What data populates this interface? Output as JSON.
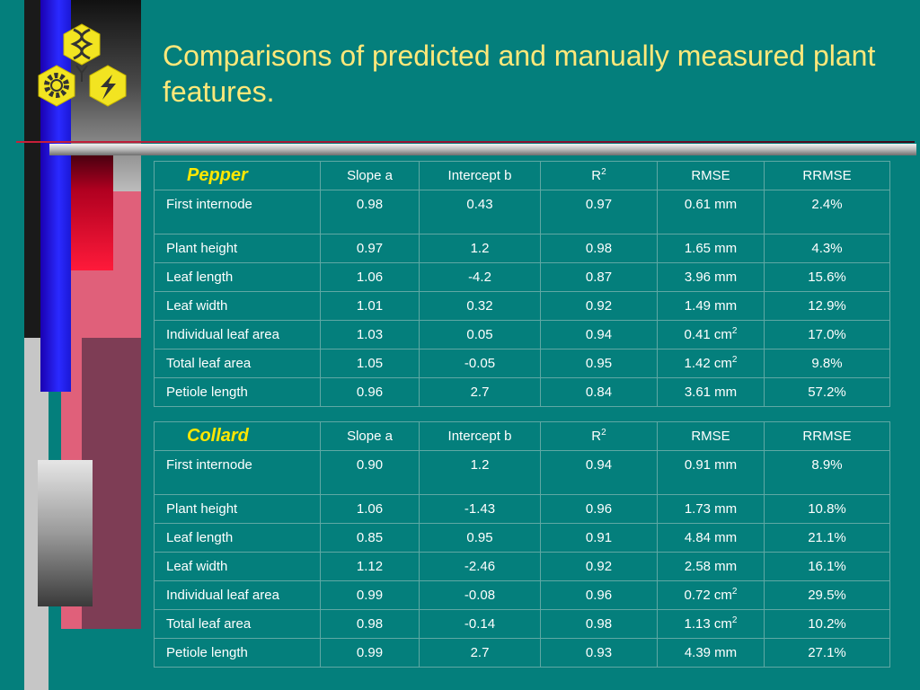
{
  "slide": {
    "title": "Comparisons of predicted and manually measured plant features.",
    "logo_icon": "dna-gear-lightning-hexagon-logo-icon"
  },
  "colors": {
    "background": "#047f7c",
    "title": "#ffe87a",
    "crop_label": "#ffe700",
    "text": "#ffffff"
  },
  "headers": {
    "slope": "Slope  a",
    "intercept": "Intercept  b",
    "r2_base": "R",
    "r2_sup": "2",
    "rmse": "RMSE",
    "rrmse": "RRMSE"
  },
  "tables": [
    {
      "crop": "Pepper",
      "rows": [
        {
          "feature": "First internode",
          "slope": "0.98",
          "intercept": "0.43",
          "r2": "0.97",
          "rmse": "0.61 mm",
          "rmse_sup": "",
          "rrmse": "2.4%"
        },
        {
          "feature": "Plant height",
          "slope": "0.97",
          "intercept": "1.2",
          "r2": "0.98",
          "rmse": "1.65 mm",
          "rmse_sup": "",
          "rrmse": "4.3%"
        },
        {
          "feature": "Leaf length",
          "slope": "1.06",
          "intercept": "-4.2",
          "r2": "0.87",
          "rmse": "3.96 mm",
          "rmse_sup": "",
          "rrmse": "15.6%"
        },
        {
          "feature": "Leaf width",
          "slope": "1.01",
          "intercept": "0.32",
          "r2": "0.92",
          "rmse": "1.49 mm",
          "rmse_sup": "",
          "rrmse": "12.9%"
        },
        {
          "feature": "Individual leaf area",
          "slope": "1.03",
          "intercept": "0.05",
          "r2": "0.94",
          "rmse": "0.41 cm",
          "rmse_sup": "2",
          "rrmse": "17.0%"
        },
        {
          "feature": "Total leaf area",
          "slope": "1.05",
          "intercept": "-0.05",
          "r2": "0.95",
          "rmse": "1.42 cm",
          "rmse_sup": "2",
          "rrmse": "9.8%"
        },
        {
          "feature": "Petiole length",
          "slope": "0.96",
          "intercept": "2.7",
          "r2": "0.84",
          "rmse": "3.61 mm",
          "rmse_sup": "",
          "rrmse": "57.2%"
        }
      ]
    },
    {
      "crop": "Collard",
      "rows": [
        {
          "feature": "First internode",
          "slope": "0.90",
          "intercept": "1.2",
          "r2": "0.94",
          "rmse": "0.91 mm",
          "rmse_sup": "",
          "rrmse": "8.9%"
        },
        {
          "feature": "Plant height",
          "slope": "1.06",
          "intercept": "-1.43",
          "r2": "0.96",
          "rmse": "1.73 mm",
          "rmse_sup": "",
          "rrmse": "10.8%"
        },
        {
          "feature": "Leaf length",
          "slope": "0.85",
          "intercept": "0.95",
          "r2": "0.91",
          "rmse": "4.84 mm",
          "rmse_sup": "",
          "rrmse": "21.1%"
        },
        {
          "feature": "Leaf width",
          "slope": "1.12",
          "intercept": "-2.46",
          "r2": "0.92",
          "rmse": "2.58 mm",
          "rmse_sup": "",
          "rrmse": "16.1%"
        },
        {
          "feature": "Individual leaf area",
          "slope": "0.99",
          "intercept": "-0.08",
          "r2": "0.96",
          "rmse": "0.72 cm",
          "rmse_sup": "2",
          "rrmse": "29.5%"
        },
        {
          "feature": "Total leaf area",
          "slope": "0.98",
          "intercept": "-0.14",
          "r2": "0.98",
          "rmse": "1.13 cm",
          "rmse_sup": "2",
          "rrmse": "10.2%"
        },
        {
          "feature": "Petiole length",
          "slope": "0.99",
          "intercept": "2.7",
          "r2": "0.93",
          "rmse": "4.39 mm",
          "rmse_sup": "",
          "rrmse": "27.1%"
        }
      ]
    }
  ]
}
